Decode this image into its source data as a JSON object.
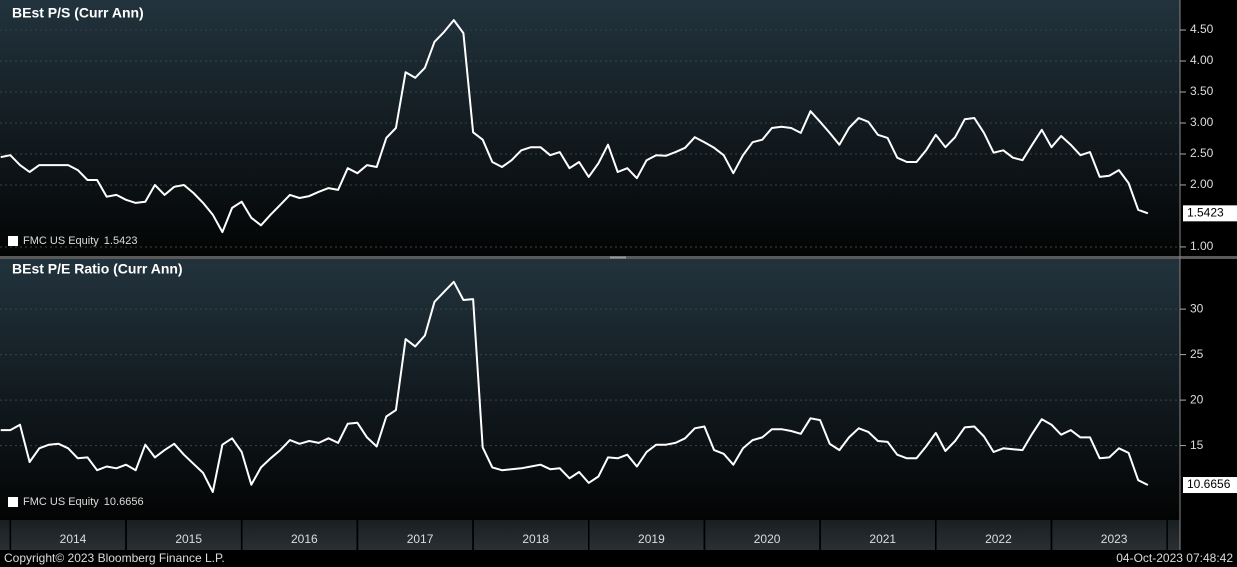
{
  "chart_data": [
    {
      "type": "line",
      "title": "BEst P/S (Curr Ann)",
      "ylim": [
        0.87,
        4.92
      ],
      "yticks": [
        {
          "value": 1,
          "label": "1.00"
        },
        {
          "value": 2,
          "label": "2.00"
        },
        {
          "value": 2.5,
          "label": "2.50"
        },
        {
          "value": 3,
          "label": "3.00"
        },
        {
          "value": 3.5,
          "label": "3.50"
        },
        {
          "value": 4,
          "label": "4.00"
        },
        {
          "value": 4.5,
          "label": "4.50"
        }
      ],
      "grid": true,
      "legend": "bottom-left",
      "series": [
        {
          "name": "FMC US Equity",
          "color": "#ffffff",
          "values": [
            2.45,
            2.48,
            2.32,
            2.21,
            2.32,
            2.32,
            2.32,
            2.32,
            2.24,
            2.08,
            2.08,
            1.81,
            1.84,
            1.76,
            1.71,
            1.73,
            2.0,
            1.84,
            1.97,
            2.0,
            1.87,
            1.71,
            1.52,
            1.24,
            1.63,
            1.73,
            1.47,
            1.35,
            1.52,
            1.68,
            1.84,
            1.79,
            1.82,
            1.89,
            1.95,
            1.92,
            2.27,
            2.19,
            2.32,
            2.29,
            2.76,
            2.92,
            3.82,
            3.73,
            3.89,
            4.31,
            4.47,
            4.66,
            4.45,
            2.85,
            2.73,
            2.37,
            2.29,
            2.4,
            2.56,
            2.61,
            2.61,
            2.48,
            2.53,
            2.27,
            2.37,
            2.13,
            2.35,
            2.65,
            2.21,
            2.27,
            2.11,
            2.4,
            2.48,
            2.47,
            2.53,
            2.6,
            2.77,
            2.69,
            2.6,
            2.48,
            2.19,
            2.48,
            2.69,
            2.73,
            2.92,
            2.94,
            2.92,
            2.84,
            3.19,
            3.02,
            2.84,
            2.65,
            2.92,
            3.08,
            3.02,
            2.81,
            2.76,
            2.44,
            2.37,
            2.37,
            2.56,
            2.81,
            2.61,
            2.77,
            3.06,
            3.08,
            2.84,
            2.52,
            2.56,
            2.44,
            2.4,
            2.65,
            2.89,
            2.61,
            2.79,
            2.65,
            2.48,
            2.53,
            2.13,
            2.15,
            2.24,
            2.03,
            1.6,
            1.5423
          ]
        }
      ]
    },
    {
      "type": "line",
      "title": "BEst P/E Ratio (Curr Ann)",
      "categories": [
        null,
        null,
        null,
        null,
        null,
        null,
        null,
        null,
        "2014",
        null,
        null,
        null,
        null,
        null,
        null,
        null,
        null,
        null,
        null,
        null,
        "2015",
        null,
        null,
        null,
        null,
        null,
        null,
        null,
        null,
        null,
        null,
        null,
        "2016",
        null,
        null,
        null,
        null,
        null,
        null,
        null,
        null,
        null,
        null,
        null,
        "2017",
        null,
        null,
        null,
        null,
        null,
        null,
        null,
        null,
        null,
        null,
        null,
        "2018",
        null,
        null,
        null,
        null,
        null,
        null,
        null,
        null,
        null,
        null,
        null,
        "2019",
        null,
        null,
        null,
        null,
        null,
        null,
        null,
        null,
        null,
        null,
        null,
        "2020",
        null,
        null,
        null,
        null,
        null,
        null,
        null,
        null,
        null,
        null,
        null,
        "2021",
        null,
        null,
        null,
        null,
        null,
        null,
        null,
        null,
        null,
        null,
        null,
        "2022",
        null,
        null,
        null,
        null,
        null,
        null,
        null,
        null,
        null,
        null,
        null,
        "2023",
        null,
        null,
        null
      ],
      "ylim": [
        7.7,
        35.4
      ],
      "yticks": [
        15,
        20,
        25,
        30
      ],
      "grid": true,
      "legend": "bottom-left",
      "series": [
        {
          "name": "FMC US Equity",
          "color": "#ffffff",
          "values": [
            16.7,
            16.7,
            17.3,
            13.2,
            14.7,
            15.1,
            15.2,
            14.7,
            13.6,
            13.7,
            12.3,
            12.7,
            12.5,
            12.9,
            12.3,
            15.1,
            13.7,
            14.5,
            15.2,
            14.0,
            13.0,
            12.0,
            9.9,
            15.1,
            15.8,
            14.3,
            10.7,
            12.6,
            13.6,
            14.5,
            15.6,
            15.2,
            15.5,
            15.3,
            15.8,
            15.3,
            17.4,
            17.5,
            15.9,
            14.9,
            18.2,
            18.9,
            26.7,
            25.9,
            27.1,
            30.8,
            31.9,
            33.0,
            31.0,
            31.1,
            14.8,
            12.6,
            12.3,
            12.4,
            12.5,
            12.7,
            12.9,
            12.4,
            12.5,
            11.4,
            12.1,
            10.9,
            11.6,
            13.7,
            13.6,
            14.0,
            12.7,
            14.3,
            15.1,
            15.1,
            15.3,
            15.8,
            16.9,
            17.1,
            14.5,
            14.1,
            12.9,
            14.7,
            15.6,
            15.9,
            16.8,
            16.8,
            16.6,
            16.3,
            18.0,
            17.8,
            15.2,
            14.5,
            15.9,
            16.9,
            16.5,
            15.5,
            15.4,
            14.0,
            13.6,
            13.6,
            14.9,
            16.4,
            14.4,
            15.5,
            17.0,
            17.1,
            16.0,
            14.3,
            14.7,
            14.6,
            14.5,
            16.3,
            17.9,
            17.3,
            16.2,
            16.7,
            15.9,
            15.9,
            13.6,
            13.7,
            14.7,
            14.2,
            11.2,
            10.6656
          ]
        }
      ]
    }
  ],
  "footer": {
    "left": "Copyright© 2023 Bloomberg Finance L.P.",
    "right": "04-Oct-2023 07:48:42"
  }
}
